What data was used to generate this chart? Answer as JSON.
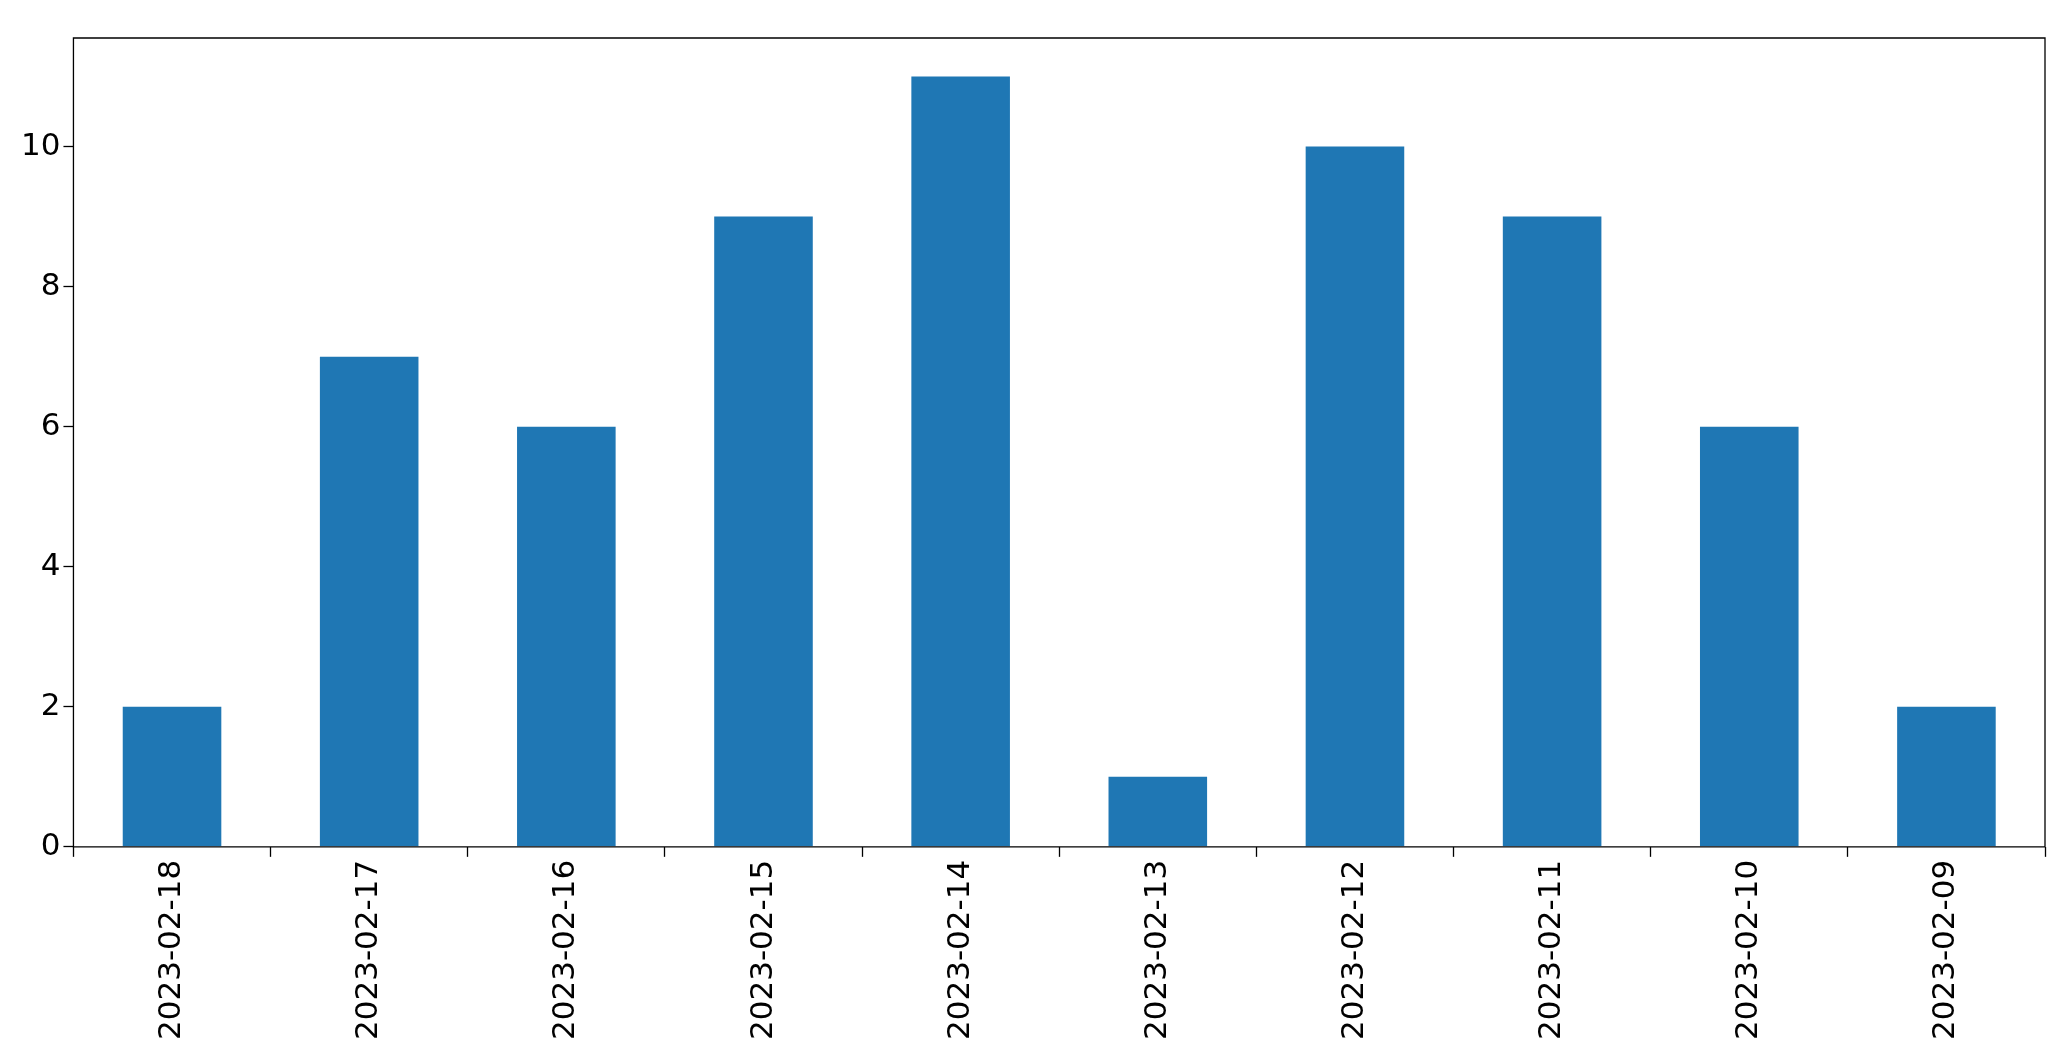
{
  "chart_data": {
    "type": "bar",
    "categories": [
      "2023-02-18",
      "2023-02-17",
      "2023-02-16",
      "2023-02-15",
      "2023-02-14",
      "2023-02-13",
      "2023-02-12",
      "2023-02-11",
      "2023-02-10",
      "2023-02-09"
    ],
    "values": [
      2,
      7,
      6,
      9,
      11,
      1,
      10,
      9,
      6,
      2
    ],
    "color": "#1f77b4",
    "ylim": [
      0,
      11.55
    ],
    "yticks": [
      0,
      2,
      4,
      6,
      8,
      10
    ]
  }
}
